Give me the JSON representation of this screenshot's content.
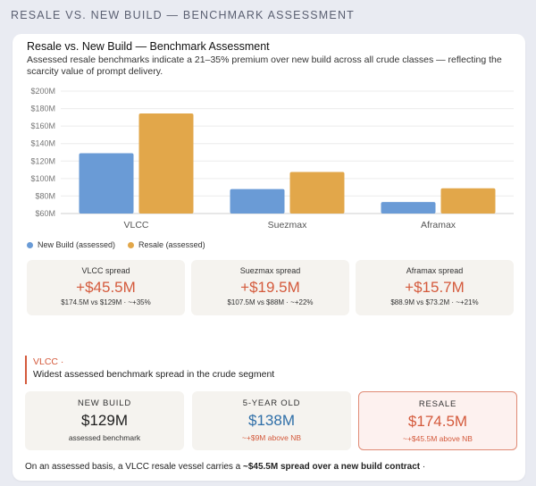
{
  "header": {
    "title": "RESALE VS. NEW BUILD — BENCHMARK ASSESSMENT"
  },
  "card": {
    "title": "Resale vs. New Build — Benchmark Assessment",
    "subtitle": "Assessed resale benchmarks indicate a 21–35% premium over new build across all crude classes — reflecting the scarcity value of prompt delivery."
  },
  "chart_data": {
    "type": "bar",
    "categories": [
      "VLCC",
      "Suezmax",
      "Aframax"
    ],
    "series": [
      {
        "name": "New Build (assessed)",
        "values": [
          129,
          88,
          73.2
        ],
        "color": "#6a9bd6"
      },
      {
        "name": "Resale (assessed)",
        "values": [
          174.5,
          107.5,
          88.9
        ],
        "color": "#e2a74a"
      }
    ],
    "ylim": [
      60,
      200
    ],
    "yticks": [
      60,
      80,
      100,
      120,
      140,
      160,
      180,
      200
    ],
    "ytick_labels": [
      "$60M",
      "$80M",
      "$100M",
      "$120M",
      "$140M",
      "$160M",
      "$180M",
      "$200M"
    ],
    "grid": true,
    "legend_position": "bottom-left",
    "xlabel": "",
    "ylabel": ""
  },
  "legend": {
    "items": [
      {
        "label": "New Build (assessed)",
        "color": "#6a9bd6"
      },
      {
        "label": "Resale (assessed)",
        "color": "#e2a74a"
      }
    ]
  },
  "spreads": [
    {
      "label": "VLCC spread",
      "value": "+$45.5M",
      "detail": "$174.5M vs $129M · ~+35%"
    },
    {
      "label": "Suezmax spread",
      "value": "+$19.5M",
      "detail": "$107.5M vs $88M · ~+22%"
    },
    {
      "label": "Aframax spread",
      "value": "+$15.7M",
      "detail": "$88.9M vs $73.2M · ~+21%"
    }
  ],
  "highlight": {
    "title": "VLCC ·",
    "text": "Widest assessed benchmark spread in the crude segment"
  },
  "values": [
    {
      "label": "NEW BUILD",
      "value": "$129M",
      "sub": "assessed benchmark",
      "value_color": "#1c1c1c",
      "sub_color": "#333333"
    },
    {
      "label": "5-YEAR OLD",
      "value": "$138M",
      "sub": "~+$9M above NB",
      "value_color": "#2f6fa8",
      "sub_color": "#d45a3c"
    },
    {
      "label": "RESALE",
      "value": "$174.5M",
      "sub": "~+$45.5M above NB",
      "value_color": "#d45a3c",
      "sub_color": "#d45a3c"
    }
  ],
  "footer": {
    "prefix": "On an assessed basis, a VLCC resale vessel carries a ",
    "bold": "~$45.5M spread over a new build contract",
    "suffix": " ·"
  }
}
